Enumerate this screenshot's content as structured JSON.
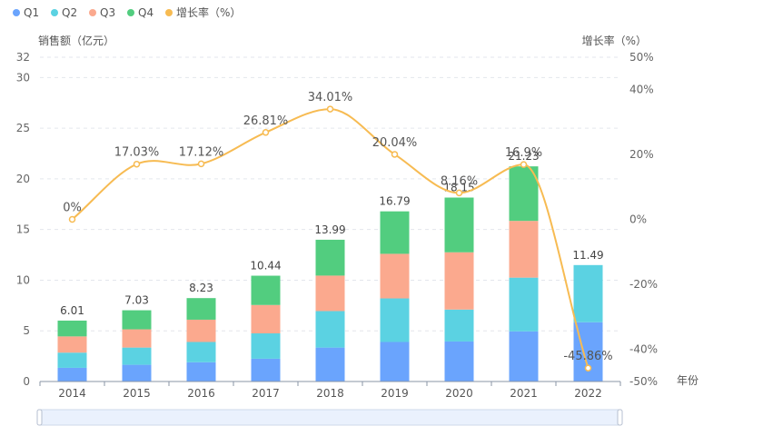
{
  "chart_data": {
    "type": "bar",
    "stacked": true,
    "categories": [
      "2014",
      "2015",
      "2016",
      "2017",
      "2018",
      "2019",
      "2020",
      "2021",
      "2022"
    ],
    "series": [
      {
        "name": "Q1",
        "type": "bar",
        "axis": "left",
        "color": "#6aa4fd",
        "values": [
          1.35,
          1.65,
          1.9,
          2.25,
          3.35,
          3.9,
          3.95,
          4.95,
          5.85
        ]
      },
      {
        "name": "Q2",
        "type": "bar",
        "axis": "left",
        "color": "#5bd2e2",
        "values": [
          1.5,
          1.7,
          2.0,
          2.5,
          3.6,
          4.3,
          3.15,
          5.3,
          5.64
        ]
      },
      {
        "name": "Q3",
        "type": "bar",
        "axis": "left",
        "color": "#fba98e",
        "values": [
          1.6,
          1.8,
          2.2,
          2.8,
          3.5,
          4.4,
          5.65,
          5.6,
          0
        ]
      },
      {
        "name": "Q4",
        "type": "bar",
        "axis": "left",
        "color": "#52cd7f",
        "values": [
          1.56,
          1.88,
          2.13,
          2.89,
          3.54,
          4.19,
          5.4,
          5.38,
          0
        ]
      },
      {
        "name": "增长率（%）",
        "type": "line",
        "axis": "right",
        "color": "#f7bb52",
        "values": [
          0,
          17.03,
          17.12,
          26.81,
          34.01,
          20.04,
          8.16,
          16.9,
          -45.86
        ]
      }
    ],
    "totals": [
      6.01,
      7.03,
      8.23,
      10.44,
      13.99,
      16.79,
      18.15,
      21.23,
      11.49
    ],
    "total_labels": [
      "6.01",
      "7.03",
      "8.23",
      "10.44",
      "13.99",
      "16.79",
      "18.15",
      "21.23",
      "11.49"
    ],
    "rate_labels": [
      "0%",
      "17.03%",
      "17.12%",
      "26.81%",
      "34.01%",
      "20.04%",
      "8.16%",
      "16.9%",
      "-45.86%"
    ],
    "left_axis": {
      "title": "销售额（亿元）",
      "ticks": [
        0,
        5,
        10,
        15,
        20,
        25,
        30,
        32
      ],
      "tick_labels": [
        "0",
        "5",
        "10",
        "15",
        "20",
        "25",
        "30",
        "32"
      ],
      "ylim": [
        0,
        32
      ]
    },
    "right_axis": {
      "title": "增长率（%）",
      "ticks": [
        -50,
        -40,
        -20,
        0,
        20,
        40,
        50
      ],
      "tick_labels": [
        "-50%",
        "-40%",
        "-20%",
        "0%",
        "20%",
        "40%",
        "50%"
      ],
      "ylim": [
        -50,
        50
      ]
    },
    "x_axis": {
      "title": "年份"
    },
    "legend": {
      "position": "top-left",
      "items": [
        "Q1",
        "Q2",
        "Q3",
        "Q4",
        "增长率（%）"
      ]
    },
    "grid": true,
    "datazoom": {
      "present": true
    }
  }
}
